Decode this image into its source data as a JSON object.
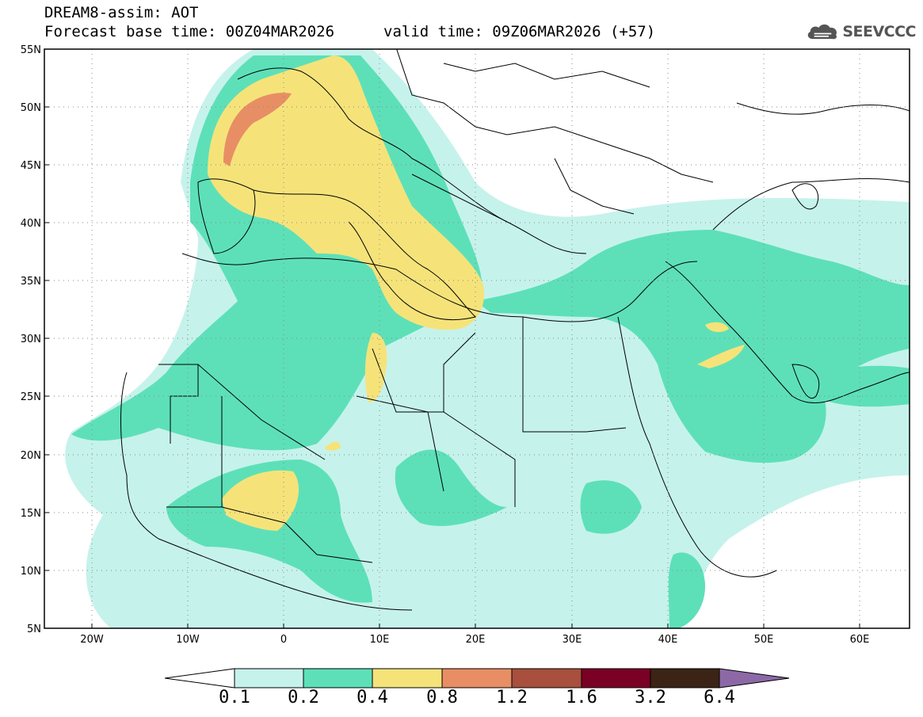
{
  "header": {
    "model": "DREAM8-assim: AOT",
    "base_time_label": "Forecast base time: 00Z04MAR2026",
    "valid_time_label": "valid time: 09Z06MAR2026 (+57)"
  },
  "logo": {
    "text": "SEEVCCC",
    "icon": "cloud-icon"
  },
  "map": {
    "lat_labels": [
      "55N",
      "50N",
      "45N",
      "40N",
      "35N",
      "30N",
      "25N",
      "20N",
      "15N",
      "10N",
      "5N"
    ],
    "lon_labels": [
      "20W",
      "10W",
      "0",
      "10E",
      "20E",
      "30E",
      "40E",
      "50E",
      "60E"
    ]
  },
  "colorbar": {
    "labels": [
      "0.1",
      "0.2",
      "0.4",
      "0.8",
      "1.2",
      "1.6",
      "3.2",
      "6.4"
    ],
    "colors": {
      "under": "#ffffff",
      "c1": "#c6f2ec",
      "c2": "#5de0b8",
      "c3": "#f5e37a",
      "c4": "#e88e64",
      "c5": "#a84f3e",
      "c6": "#7a0026",
      "c7": "#3b2415",
      "over": "#8c69a6"
    }
  }
}
